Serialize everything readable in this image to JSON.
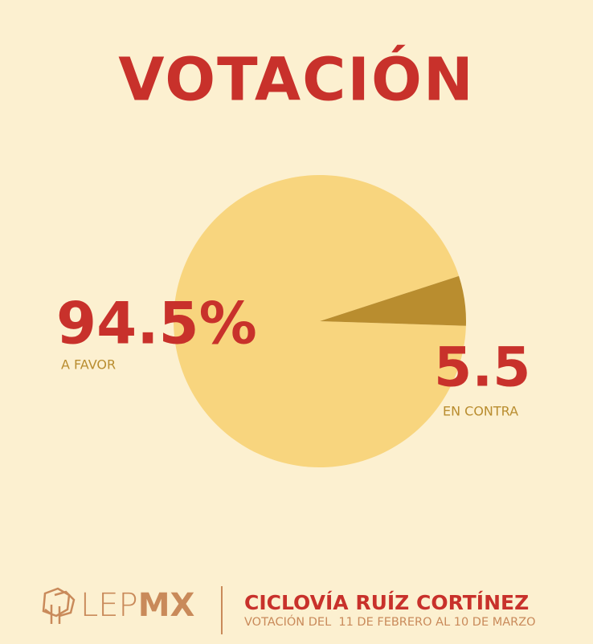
{
  "chart_data": {
    "type": "pie",
    "title": "VOTACIÓN",
    "categories": [
      "A FAVOR",
      "EN CONTRA"
    ],
    "values": [
      94.5,
      5.5
    ],
    "value_labels": [
      "94.5%",
      "5.5"
    ],
    "colors": [
      "#f8d57e",
      "#b98d2f"
    ]
  },
  "footer": {
    "logo": [
      "LEP",
      "MX"
    ],
    "title": "CICLOVÍA RUÍZ CORTÍNEZ",
    "subtitle": "VOTACIÓN DEL  11 DE FEBRERO AL 10 DE MARZO"
  }
}
